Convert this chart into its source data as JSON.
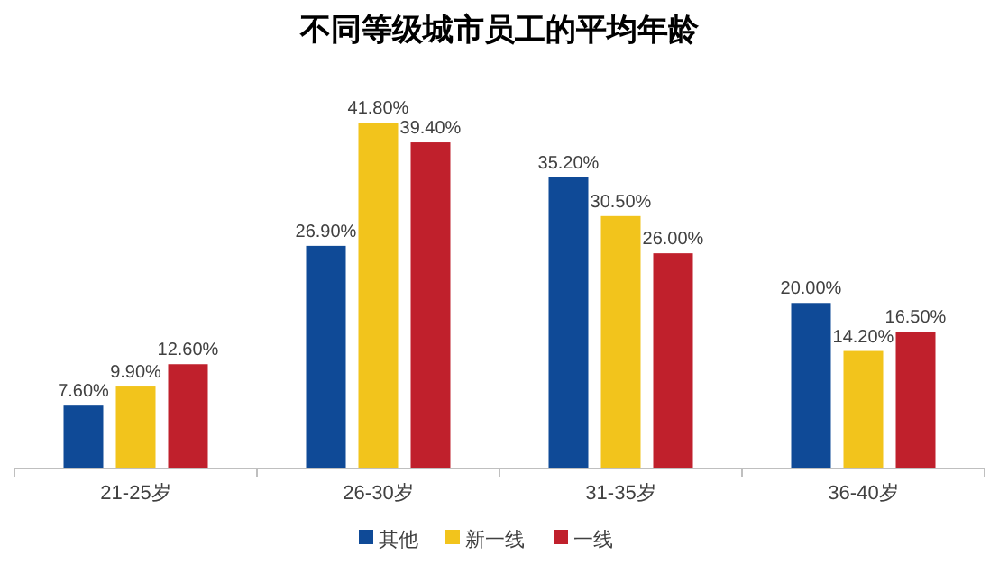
{
  "chart_data": {
    "type": "bar",
    "title": "不同等级城市员工的平均年龄",
    "categories": [
      "21-25岁",
      "26-30岁",
      "31-35岁",
      "36-40岁"
    ],
    "series": [
      {
        "name": "其他",
        "color": "#0f4a97",
        "values": [
          7.6,
          26.9,
          35.2,
          20.0
        ],
        "value_labels": [
          "7.60%",
          "26.90%",
          "35.20%",
          "20.00%"
        ]
      },
      {
        "name": "新一线",
        "color": "#f2c41c",
        "values": [
          9.9,
          41.8,
          30.5,
          14.2
        ],
        "value_labels": [
          "9.90%",
          "41.80%",
          "30.50%",
          "14.20%"
        ]
      },
      {
        "name": "一线",
        "color": "#c0202c",
        "values": [
          12.6,
          39.4,
          26.0,
          16.5
        ],
        "value_labels": [
          "12.60%",
          "39.40%",
          "26.00%",
          "16.50%"
        ]
      }
    ],
    "legend": "bottom"
  }
}
